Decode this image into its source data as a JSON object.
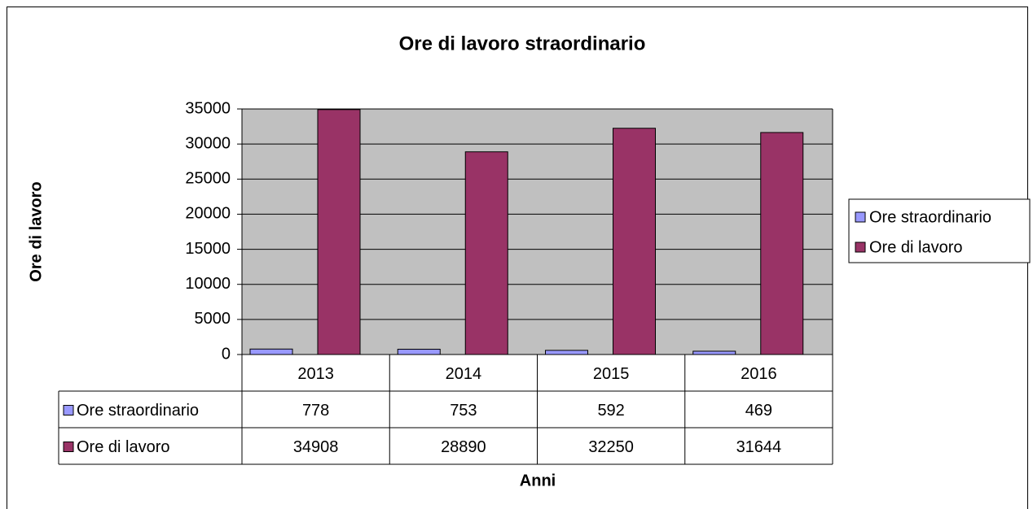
{
  "chart_data": {
    "type": "bar",
    "title": "Ore di lavoro straordinario",
    "y_label": "Ore di lavoro",
    "x_label": "Anni",
    "categories": [
      "2013",
      "2014",
      "2015",
      "2016"
    ],
    "series": [
      {
        "name": "Ore straordinario",
        "color": "#9999ff",
        "values": [
          778,
          753,
          592,
          469
        ]
      },
      {
        "name": "Ore di lavoro",
        "color": "#993366",
        "values": [
          34908,
          28890,
          32250,
          31644
        ]
      }
    ],
    "ylim": [
      0,
      35000
    ],
    "yticks": [
      0,
      5000,
      10000,
      15000,
      20000,
      25000,
      30000,
      35000
    ],
    "grid": true,
    "legend": "right",
    "plot_background": "#c0c0c0",
    "data_table": true
  }
}
